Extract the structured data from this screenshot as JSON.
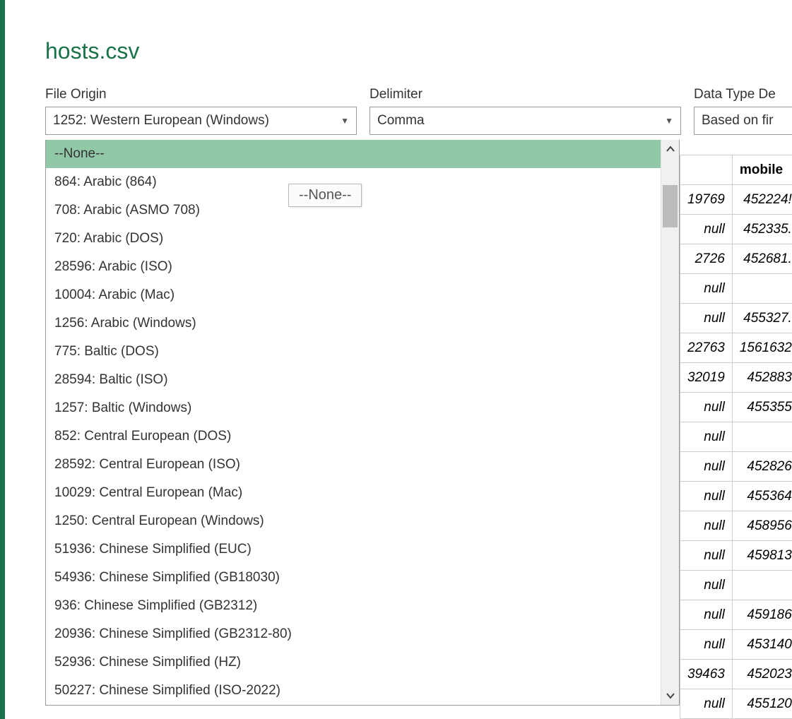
{
  "title": "hosts.csv",
  "controls": {
    "file_origin": {
      "label": "File Origin",
      "value": "1252: Western European (Windows)"
    },
    "delimiter": {
      "label": "Delimiter",
      "value": "Comma"
    },
    "data_type": {
      "label": "Data Type De",
      "value": "Based on fir"
    }
  },
  "dropdown": {
    "highlighted_index": 0,
    "options": [
      "--None--",
      "864: Arabic (864)",
      "708: Arabic (ASMO 708)",
      "720: Arabic (DOS)",
      "28596: Arabic (ISO)",
      "10004: Arabic (Mac)",
      "1256: Arabic (Windows)",
      "775: Baltic (DOS)",
      "28594: Baltic (ISO)",
      "1257: Baltic (Windows)",
      "852: Central European (DOS)",
      "28592: Central European (ISO)",
      "10029: Central European (Mac)",
      "1250: Central European (Windows)",
      "51936: Chinese Simplified (EUC)",
      "54936: Chinese Simplified (GB18030)",
      "936: Chinese Simplified (GB2312)",
      "20936: Chinese Simplified (GB2312-80)",
      "52936: Chinese Simplified (HZ)",
      "50227: Chinese Simplified (ISO-2022)"
    ]
  },
  "tooltip": "--None--",
  "table": {
    "columns": [
      "",
      "mobile"
    ],
    "rows": [
      [
        "19769",
        "452224!"
      ],
      [
        "null",
        "452335."
      ],
      [
        "2726",
        "452681."
      ],
      [
        "null",
        ""
      ],
      [
        "null",
        "455327."
      ],
      [
        "22763",
        "1561632"
      ],
      [
        "32019",
        "452883"
      ],
      [
        "null",
        "455355"
      ],
      [
        "null",
        ""
      ],
      [
        "null",
        "452826"
      ],
      [
        "null",
        "455364"
      ],
      [
        "null",
        "458956"
      ],
      [
        "null",
        "459813"
      ],
      [
        "null",
        ""
      ],
      [
        "null",
        "459186"
      ],
      [
        "null",
        "453140"
      ],
      [
        "39463",
        "452023"
      ],
      [
        "null",
        "455120"
      ]
    ]
  },
  "colors": {
    "accent": "#1a7348",
    "dropdown_highlight": "#90c8a8",
    "border": "#999999",
    "text": "#333333",
    "scroll_thumb": "#bcbcbc"
  }
}
